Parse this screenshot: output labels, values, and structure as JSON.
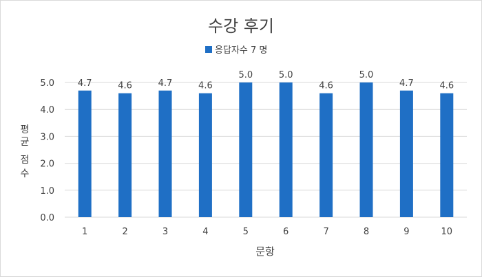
{
  "chart_data": {
    "type": "bar",
    "title": "수강 후기",
    "legend": {
      "position": "top",
      "entries": [
        "응답자수 7 명"
      ]
    },
    "xlabel": "문항",
    "ylabel_chars": [
      "평",
      "균",
      "점",
      "수"
    ],
    "categories": [
      "1",
      "2",
      "3",
      "4",
      "5",
      "6",
      "7",
      "8",
      "9",
      "10"
    ],
    "series": [
      {
        "name": "응답자수 7 명",
        "values": [
          4.7,
          4.6,
          4.7,
          4.6,
          5.0,
          5.0,
          4.6,
          5.0,
          4.7,
          4.6
        ],
        "color": "#1f6fc5"
      }
    ],
    "data_labels": [
      "4.7",
      "4.6",
      "4.7",
      "4.6",
      "5.0",
      "5.0",
      "4.6",
      "5.0",
      "4.7",
      "4.6"
    ],
    "y_ticks": [
      "0.0",
      "1.0",
      "2.0",
      "3.0",
      "4.0",
      "5.0"
    ],
    "ylim": [
      0,
      5
    ],
    "grid": true,
    "colors": {
      "bar": "#1f6fc5",
      "grid": "#d9d9d9",
      "text": "#404040",
      "title": "#404040"
    }
  }
}
